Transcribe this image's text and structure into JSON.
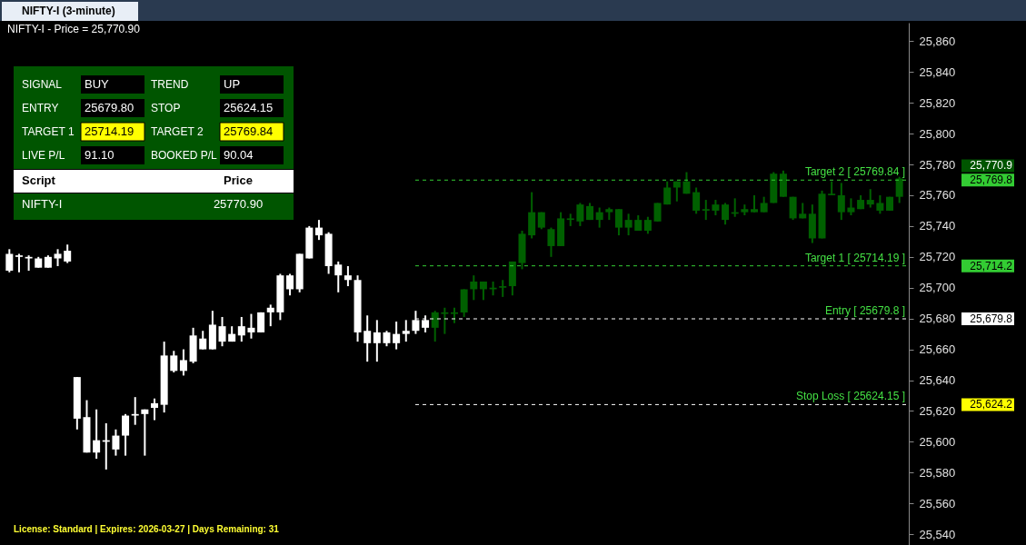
{
  "chart_data": {
    "type": "candlestick",
    "title": "NIFTY-I (3-minute)",
    "subtitle": "NIFTY-I - Price = 25,770.90",
    "categories": [
      null,
      null,
      null,
      null,
      null,
      null,
      null,
      null,
      null,
      null,
      null,
      null,
      null,
      null,
      null,
      null,
      null,
      null,
      null,
      null,
      null,
      null,
      null,
      null,
      null,
      null,
      null,
      null,
      null,
      null,
      null,
      null,
      null,
      null,
      null,
      null,
      null,
      null,
      null,
      null,
      null,
      null,
      null,
      null,
      null,
      null,
      null,
      null,
      null,
      null,
      null,
      null,
      null,
      null,
      null,
      null,
      null,
      null,
      null,
      null,
      null,
      null,
      null,
      null,
      null,
      null,
      null,
      null,
      null,
      null,
      null,
      null,
      null,
      null,
      null,
      null,
      null,
      null,
      null,
      null,
      null,
      null,
      null,
      null,
      null,
      null,
      null,
      null,
      null,
      null,
      null,
      null,
      null
    ],
    "ohlc": [
      [
        25711,
        25725,
        25710,
        25722
      ],
      [
        25720,
        25722,
        25710,
        25721
      ],
      [
        25719,
        25721,
        25711,
        25720
      ],
      [
        25713,
        25720,
        25713,
        25719
      ],
      [
        25713,
        25721,
        25713,
        25720
      ],
      [
        25719,
        25725,
        25714,
        25722
      ],
      [
        25717,
        25728,
        25716,
        25724
      ],
      [
        25615,
        25642,
        25608,
        25642
      ],
      [
        25593,
        25627,
        25593,
        25616
      ],
      [
        25593,
        25621,
        25589,
        25601
      ],
      [
        25600,
        25612,
        25582,
        25601
      ],
      [
        25595,
        25608,
        25591,
        25604
      ],
      [
        25604,
        25618,
        25591,
        25617
      ],
      [
        25617,
        25629,
        25611,
        25618
      ],
      [
        25618,
        25621,
        25591,
        25621
      ],
      [
        25622,
        25628,
        25614,
        25625
      ],
      [
        25624,
        25665,
        25619,
        25656
      ],
      [
        25646,
        25659,
        25645,
        25656
      ],
      [
        25646,
        25660,
        25643,
        25653
      ],
      [
        25652,
        25674,
        25651,
        25669
      ],
      [
        25660,
        25672,
        25660,
        25667
      ],
      [
        25660,
        25685,
        25660,
        25676
      ],
      [
        25665,
        25681,
        25662,
        25675
      ],
      [
        25665,
        25675,
        25665,
        25670
      ],
      [
        25669,
        25681,
        25665,
        25675
      ],
      [
        25671,
        25683,
        25667,
        25674
      ],
      [
        25671,
        25684,
        25671,
        25684
      ],
      [
        25684,
        25689,
        25675,
        25687
      ],
      [
        25684,
        25709,
        25679,
        25708
      ],
      [
        25699,
        25709,
        25695,
        25708
      ],
      [
        25699,
        25722,
        25697,
        25722
      ],
      [
        25719,
        25740,
        25719,
        25739
      ],
      [
        25734,
        25744,
        25731,
        25739
      ],
      [
        25714,
        25736,
        25709,
        25735
      ],
      [
        25708,
        25717,
        25697,
        25715
      ],
      [
        25705,
        25714,
        25701,
        25708
      ],
      [
        25671,
        25708,
        25665,
        25705
      ],
      [
        25664,
        25682,
        25652,
        25672
      ],
      [
        25664,
        25679,
        25652,
        25671
      ],
      [
        25664,
        25672,
        25662,
        25671
      ],
      [
        25664,
        25678,
        25660,
        25670
      ],
      [
        25670,
        25679,
        25665,
        25672
      ],
      [
        25672,
        25685,
        25670,
        25679
      ],
      [
        25674,
        25682,
        25671,
        25679
      ],
      [
        25674,
        25685,
        25665,
        25684
      ],
      [
        25683,
        25687,
        25670,
        25684
      ],
      [
        25683,
        25687,
        25677,
        25684
      ],
      [
        25684,
        25699,
        25681,
        25699
      ],
      [
        25699,
        25708,
        25692,
        25704
      ],
      [
        25699,
        25704,
        25692,
        25704
      ],
      [
        25699,
        25704,
        25695,
        25700
      ],
      [
        25700,
        25705,
        25694,
        25701
      ],
      [
        25701,
        25717,
        25695,
        25717
      ],
      [
        25716,
        25737,
        25712,
        25735
      ],
      [
        25734,
        25762,
        25732,
        25749
      ],
      [
        25739,
        25749,
        25738,
        25749
      ],
      [
        25727,
        25739,
        25720,
        25738
      ],
      [
        25727,
        25749,
        25727,
        25745
      ],
      [
        25744,
        25748,
        25740,
        25745
      ],
      [
        25743,
        25755,
        25740,
        25754
      ],
      [
        25744,
        25755,
        25744,
        25753
      ],
      [
        25744,
        25752,
        25739,
        25749
      ],
      [
        25749,
        25752,
        25744,
        25751
      ],
      [
        25739,
        25751,
        25734,
        25751
      ],
      [
        25739,
        25748,
        25734,
        25744
      ],
      [
        25737,
        25747,
        25737,
        25744
      ],
      [
        25737,
        25746,
        25735,
        25744
      ],
      [
        25743,
        25755,
        25743,
        25755
      ],
      [
        25754,
        25769,
        25754,
        25765
      ],
      [
        25765,
        25769,
        25756,
        25769
      ],
      [
        25761,
        25775,
        25761,
        25769
      ],
      [
        25750,
        25765,
        25748,
        25762
      ],
      [
        25750,
        25757,
        25744,
        25751
      ],
      [
        25750,
        25757,
        25747,
        25754
      ],
      [
        25744,
        25755,
        25741,
        25754
      ],
      [
        25748,
        25758,
        25746,
        25749
      ],
      [
        25749,
        25754,
        25747,
        25751
      ],
      [
        25749,
        25760,
        25749,
        25751
      ],
      [
        25749,
        25759,
        25749,
        25755
      ],
      [
        25755,
        25775,
        25755,
        25774
      ],
      [
        25759,
        25776,
        25759,
        25774
      ],
      [
        25745,
        25759,
        25744,
        25759
      ],
      [
        25745,
        25755,
        25745,
        25748
      ],
      [
        25732,
        25754,
        25729,
        25748
      ],
      [
        25732,
        25763,
        25732,
        25761
      ],
      [
        25760,
        25769,
        25760,
        25761
      ],
      [
        25749,
        25768,
        25744,
        25760
      ],
      [
        25749,
        25758,
        25747,
        25752
      ],
      [
        25751,
        25760,
        25751,
        25757
      ],
      [
        25754,
        25764,
        25752,
        25757
      ],
      [
        25750,
        25760,
        25748,
        25755
      ],
      [
        25750,
        25759,
        25750,
        25759
      ],
      [
        25759,
        25772,
        25755,
        25770.9
      ]
    ],
    "colors": [
      "#ffffff",
      "#ffffff",
      "#ffffff",
      "#ffffff",
      "#ffffff",
      "#ffffff",
      "#ffffff",
      "#ffffff",
      "#ffffff",
      "#ffffff",
      "#ffffff",
      "#ffffff",
      "#ffffff",
      "#ffffff",
      "#ffffff",
      "#ffffff",
      "#ffffff",
      "#ffffff",
      "#ffffff",
      "#ffffff",
      "#ffffff",
      "#ffffff",
      "#ffffff",
      "#ffffff",
      "#ffffff",
      "#ffffff",
      "#ffffff",
      "#ffffff",
      "#ffffff",
      "#ffffff",
      "#ffffff",
      "#ffffff",
      "#ffffff",
      "#ffffff",
      "#ffffff",
      "#ffffff",
      "#ffffff",
      "#ffffff",
      "#ffffff",
      "#ffffff",
      "#ffffff",
      "#ffffff",
      "#ffffff",
      "#ffffff",
      "#006000",
      "#006000",
      "#006000",
      "#006000",
      "#006000",
      "#006000",
      "#006000",
      "#006000",
      "#006000",
      "#006000",
      "#006000",
      "#006000",
      "#006000",
      "#006000",
      "#006000",
      "#006000",
      "#006000",
      "#006000",
      "#006000",
      "#006000",
      "#006000",
      "#006000",
      "#006000",
      "#006000",
      "#006000",
      "#006000",
      "#006000",
      "#006000",
      "#006000",
      "#006000",
      "#006000",
      "#006000",
      "#006000",
      "#006000",
      "#006000",
      "#006000",
      "#006000",
      "#006000",
      "#006000",
      "#006000",
      "#006000",
      "#006000",
      "#006000",
      "#006000",
      "#006000",
      "#006000",
      "#006000",
      "#006000",
      "#006000"
    ],
    "ylim": [
      25533,
      25872
    ],
    "yticks": [
      {
        "value": 25540,
        "label": "25,540"
      },
      {
        "value": 25560,
        "label": "25,560"
      },
      {
        "value": 25580,
        "label": "25,580"
      },
      {
        "value": 25600,
        "label": "25,600"
      },
      {
        "value": 25620,
        "label": "25,620"
      },
      {
        "value": 25640,
        "label": "25,640"
      },
      {
        "value": 25660,
        "label": "25,660"
      },
      {
        "value": 25680,
        "label": "25,680"
      },
      {
        "value": 25700,
        "label": "25,700"
      },
      {
        "value": 25720,
        "label": "25,720"
      },
      {
        "value": 25740,
        "label": "25,740"
      },
      {
        "value": 25760,
        "label": "25,760"
      },
      {
        "value": 25780,
        "label": "25,780"
      },
      {
        "value": 25800,
        "label": "25,800"
      },
      {
        "value": 25820,
        "label": "25,820"
      },
      {
        "value": 25840,
        "label": "25,840"
      },
      {
        "value": 25860,
        "label": "25,860"
      }
    ],
    "tick_labels": "y",
    "grid": false,
    "ref_lines": [
      {
        "axis": "y",
        "value": 25769.84,
        "label": "Target 2 [ 25769.84 ]",
        "color": "#33cc33",
        "line_style": "dashed"
      },
      {
        "axis": "y",
        "value": 25714.19,
        "label": "Target 1 [ 25714.19 ]",
        "color": "#33cc33",
        "line_style": "dashed"
      },
      {
        "axis": "y",
        "value": 25679.8,
        "label": "Entry [ 25679.8 ]",
        "color": "#ffffff",
        "line_style": "dashed"
      },
      {
        "axis": "y",
        "value": 25624.15,
        "label": "Stop Loss [ 25624.15 ]",
        "color": "#ffffff",
        "line_style": "dashed"
      }
    ],
    "annotations": [
      "SIGNAL",
      "BUY",
      "TREND",
      "UP",
      "ENTRY",
      "25679.80",
      "STOP",
      "25624.15",
      "TARGET 1",
      "25714.19",
      "TARGET 2",
      "25769.84",
      "LIVE P/L",
      "91.10",
      "BOOKED P/L",
      "90.04",
      "Script",
      "Price",
      "NIFTY-I",
      "25770.90",
      "License: Standard | Expires: 2026-03-27 | Days Remaining: 31",
      "25,770.9",
      "25,769.8",
      "25,714.2",
      "25,679.8",
      "25,624.2"
    ]
  }
}
